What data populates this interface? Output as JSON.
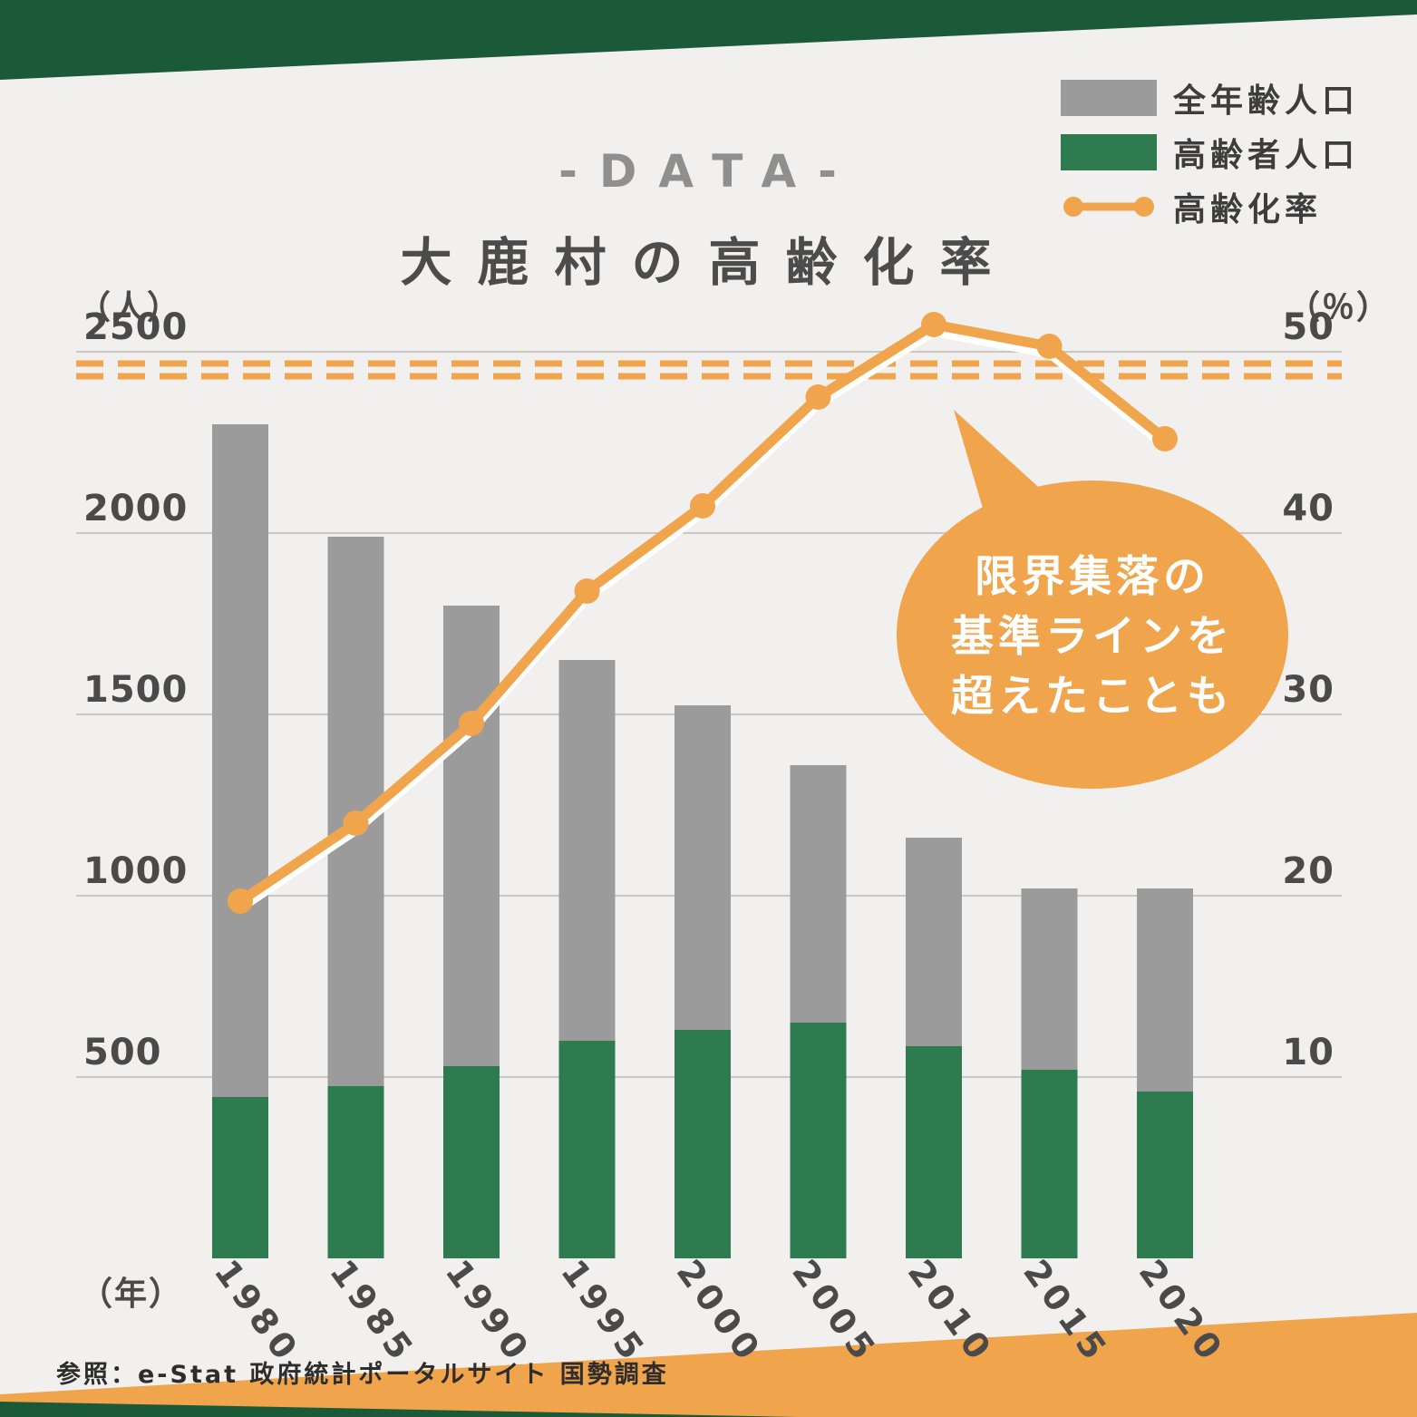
{
  "page": {
    "background_color": "#f1f0ee",
    "top_band_color": "#1a5a39",
    "bottom_band_orange": "#f0a44c",
    "bottom_band_green": "#1a5a39"
  },
  "header": {
    "title_small": "-DATA-",
    "title_main": "大鹿村の高齢化率"
  },
  "legend": {
    "items": [
      {
        "label": "全年齢人口",
        "color": "#9b9b9b"
      },
      {
        "label": "高齢者人口",
        "color": "#2e7b50"
      },
      {
        "label": "高齢化率",
        "color": "#f0a44c"
      }
    ]
  },
  "chart_data": {
    "type": "bar",
    "subtype": "overlay bars + line on secondary axis",
    "title": "大鹿村の高齢化率",
    "categories": [
      "1980",
      "1985",
      "1990",
      "1995",
      "2000",
      "2005",
      "2010",
      "2015",
      "2020"
    ],
    "series": [
      {
        "name": "全年齢人口",
        "type": "bar",
        "axis": "left",
        "color": "#9b9b9b",
        "values": [
          2300,
          1990,
          1800,
          1650,
          1525,
          1360,
          1160,
          1020,
          1020
        ]
      },
      {
        "name": "高齢者人口",
        "type": "bar",
        "axis": "left",
        "color": "#2e7b50",
        "values": [
          445,
          475,
          530,
          600,
          630,
          650,
          585,
          520,
          460
        ]
      },
      {
        "name": "高齢化率",
        "type": "line",
        "axis": "right",
        "color": "#f0a44c",
        "values": [
          19.7,
          24,
          29.5,
          36.8,
          41.5,
          47.5,
          51.5,
          50.3,
          45.2
        ]
      }
    ],
    "left_axis": {
      "unit": "（人）",
      "ticks": [
        500,
        1000,
        1500,
        2000,
        2500
      ],
      "min": 0,
      "max": 2600
    },
    "right_axis": {
      "unit": "（％）",
      "ticks": [
        10,
        20,
        30,
        40,
        50
      ],
      "min": 0,
      "max": 52
    },
    "x_axis": {
      "unit": "（年）"
    },
    "grid": "horizontal",
    "legend_position": "top-right",
    "threshold_line": {
      "right_axis_value": 49,
      "style": "double-dashed",
      "color": "#f0a44c"
    },
    "annotation": {
      "bubble_color": "#f0a44c",
      "text_color": "#ffffff",
      "lines": [
        "限界集落の",
        "基準ラインを",
        "超えたことも"
      ]
    }
  },
  "footer": {
    "source": "参照：e-Stat 政府統計ポータルサイト 国勢調査"
  }
}
